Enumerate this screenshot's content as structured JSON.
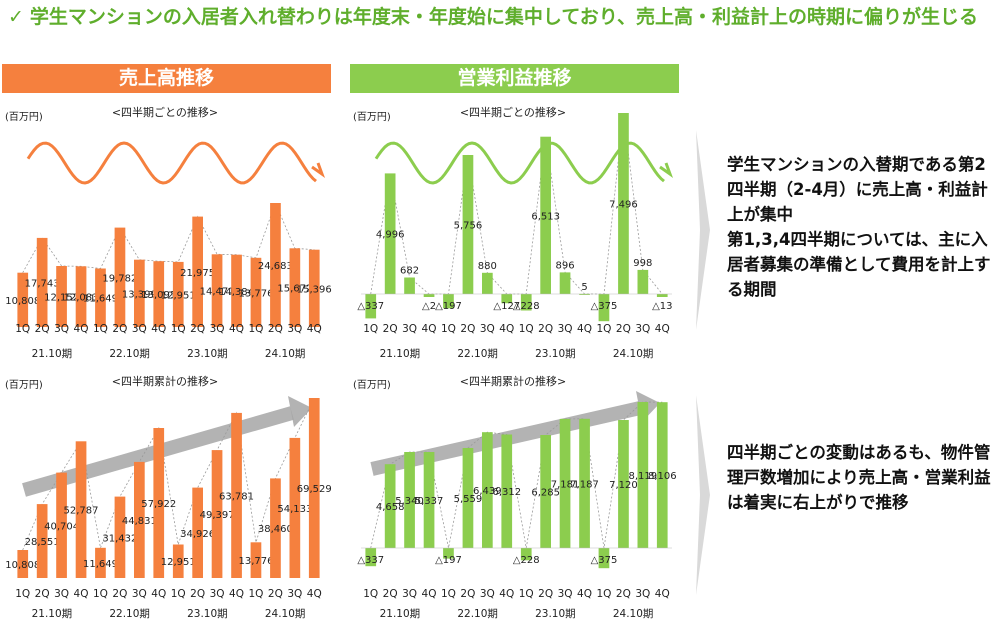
{
  "headline": {
    "check": "✓",
    "text": "学生マンションの入居者入れ替わりは年度末・年度始に集中しており、売上高・利益計上の時期に偏りが生じる"
  },
  "banners": {
    "sales": "売上高推移",
    "profit": "営業利益推移"
  },
  "side_notes": {
    "note1": "学生マンションの入替期である第2四半期（2-4月）に売上高・利益計上が集中\n第1,3,4四半期については、主に入居者募集の準備として費用を計上する期間",
    "note2": "四半期ごとの変動はあるも、物件管理戸数増加により売上高・営業利益は着実に右上がりで推移"
  },
  "colors": {
    "orange": "#f5803e",
    "green": "#8ccd4e",
    "headline_green": "#5fae2c",
    "arrow_gray": "#a6a6a6",
    "chevron_gray": "#d9d9d9"
  },
  "chart_data": [
    {
      "id": "sales_q",
      "type": "bar",
      "title": "<四半期ごとの推移>",
      "unit_label": "(百万円)",
      "categories": [
        "1Q",
        "2Q",
        "3Q",
        "4Q",
        "1Q",
        "2Q",
        "3Q",
        "4Q",
        "1Q",
        "2Q",
        "3Q",
        "4Q",
        "1Q",
        "2Q",
        "3Q",
        "4Q"
      ],
      "groups": [
        "21.10期",
        "22.10期",
        "23.10期",
        "24.10期"
      ],
      "values": [
        10808,
        17743,
        12152,
        12083,
        11649,
        19782,
        13399,
        13091,
        12951,
        21975,
        14471,
        14384,
        13776,
        24683,
        15672,
        15396
      ],
      "labels": [
        "10,808",
        "17,743",
        "12,152",
        "12,083",
        "11,649",
        "19,782",
        "13,399",
        "13,091",
        "12,951",
        "21,975",
        "14,471",
        "14,384",
        "13,776",
        "24,683",
        "15,672",
        "15,396"
      ],
      "ylim": [
        0,
        30000
      ],
      "color": "#f5803e"
    },
    {
      "id": "profit_q",
      "type": "bar",
      "title": "<四半期ごとの推移>",
      "unit_label": "(百万円)",
      "categories": [
        "1Q",
        "2Q",
        "3Q",
        "4Q",
        "1Q",
        "2Q",
        "3Q",
        "4Q",
        "1Q",
        "2Q",
        "3Q",
        "4Q",
        "1Q",
        "2Q",
        "3Q",
        "4Q"
      ],
      "groups": [
        "21.10期",
        "22.10期",
        "23.10期",
        "24.10期"
      ],
      "values": [
        -337,
        4996,
        682,
        -2,
        -197,
        5756,
        880,
        -127,
        -228,
        6513,
        896,
        5,
        -375,
        7496,
        998,
        -13
      ],
      "labels": [
        "△337",
        "4,996",
        "682",
        "△2",
        "△197",
        "5,756",
        "880",
        "△127",
        "△228",
        "6,513",
        "896",
        "5",
        "△375",
        "7,496",
        "998",
        "△13"
      ],
      "ylim": [
        -500,
        9000
      ],
      "color": "#8ccd4e"
    },
    {
      "id": "sales_cum",
      "type": "bar",
      "title": "<四半期累計の推移>",
      "unit_label": "(百万円)",
      "categories": [
        "1Q",
        "2Q",
        "3Q",
        "4Q",
        "1Q",
        "2Q",
        "3Q",
        "4Q",
        "1Q",
        "2Q",
        "3Q",
        "4Q",
        "1Q",
        "2Q",
        "3Q",
        "4Q"
      ],
      "groups": [
        "21.10期",
        "22.10期",
        "23.10期",
        "24.10期"
      ],
      "values": [
        10808,
        28551,
        40704,
        52787,
        11649,
        31432,
        44831,
        57922,
        12951,
        34926,
        49397,
        63781,
        13776,
        38460,
        54133,
        69529
      ],
      "labels": [
        "10,808",
        "28,551",
        "40,704",
        "52,787",
        "11,649",
        "31,432",
        "44,831",
        "57,922",
        "12,951",
        "34,926",
        "49,397",
        "63,781",
        "13,776",
        "38,460",
        "54,133",
        "69,529"
      ],
      "ylim": [
        0,
        75000
      ],
      "color": "#f5803e"
    },
    {
      "id": "profit_cum",
      "type": "bar",
      "title": "<四半期累計の推移>",
      "unit_label": "(百万円)",
      "categories": [
        "1Q",
        "2Q",
        "3Q",
        "4Q",
        "1Q",
        "2Q",
        "3Q",
        "4Q",
        "1Q",
        "2Q",
        "3Q",
        "4Q",
        "1Q",
        "2Q",
        "3Q",
        "4Q"
      ],
      "groups": [
        "21.10期",
        "22.10期",
        "23.10期",
        "24.10期"
      ],
      "values": [
        -337,
        4658,
        5340,
        5337,
        -197,
        5559,
        6439,
        6312,
        -228,
        6285,
        7181,
        7187,
        -375,
        7120,
        8119,
        8106
      ],
      "labels": [
        "△337",
        "4,658",
        "5,340",
        "5,337",
        "△197",
        "5,559",
        "6,439",
        "6,312",
        "△228",
        "6,285",
        "7,181",
        "7,187",
        "△375",
        "7,120",
        "8,119",
        "8,106"
      ],
      "ylim": [
        -500,
        8500
      ],
      "color": "#8ccd4e"
    }
  ]
}
